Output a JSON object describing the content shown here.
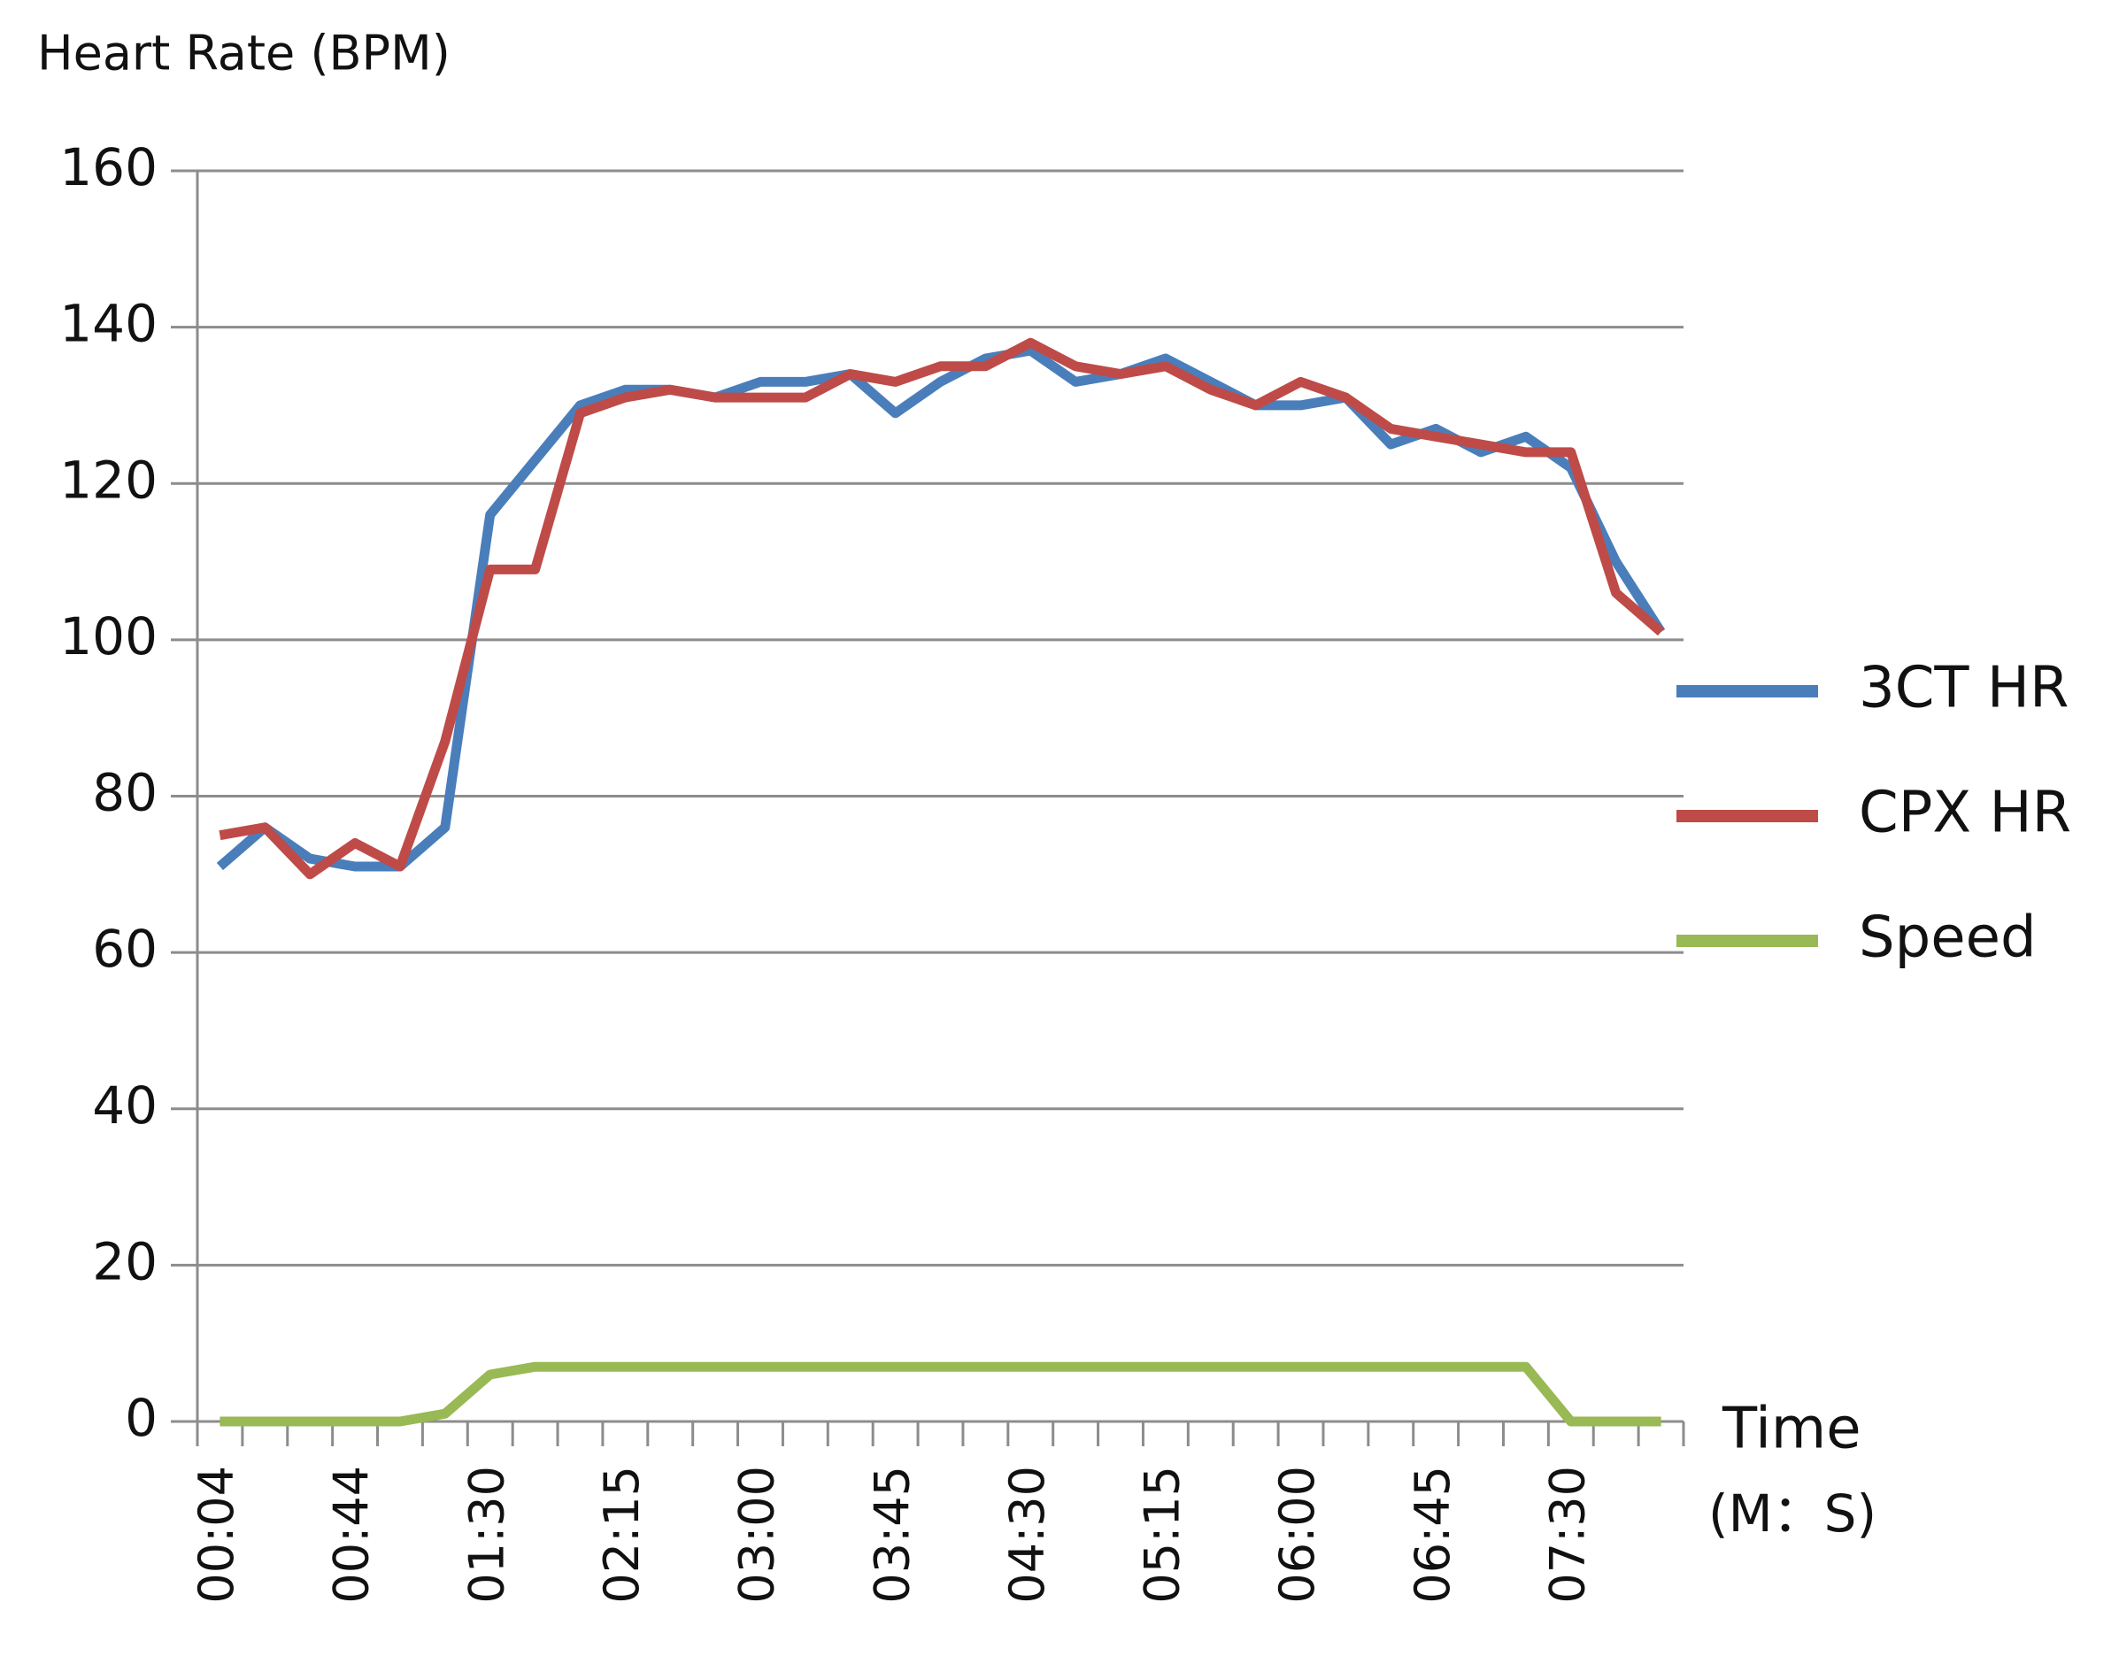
{
  "chart_data": {
    "type": "line",
    "y_label": "Heart Rate (BPM)",
    "x_label": "Time",
    "x_label_unit": "(M：S)",
    "categories": [
      "00:04",
      null,
      null,
      "00:44",
      null,
      null,
      "01:30",
      null,
      null,
      "02:15",
      null,
      null,
      "03:00",
      null,
      null,
      "03:45",
      null,
      null,
      "04:30",
      null,
      null,
      "05:15",
      null,
      null,
      "06:00",
      null,
      null,
      "06:45",
      null,
      null,
      "07:30",
      null,
      null
    ],
    "series": [
      {
        "name": "3CT HR",
        "color": "#4a7ebb",
        "values": [
          71,
          76,
          72,
          71,
          71,
          76,
          116,
          123,
          130,
          132,
          132,
          131,
          133,
          133,
          134,
          129,
          133,
          136,
          137,
          133,
          134,
          136,
          133,
          130,
          130,
          131,
          125,
          127,
          124,
          126,
          122,
          110,
          101
        ]
      },
      {
        "name": "CPX HR",
        "color": "#be4b48",
        "values": [
          75,
          76,
          70,
          74,
          71,
          87,
          109,
          109,
          129,
          131,
          132,
          131,
          131,
          131,
          134,
          133,
          135,
          135,
          138,
          135,
          134,
          135,
          132,
          130,
          133,
          131,
          127,
          126,
          125,
          124,
          124,
          106,
          101
        ]
      },
      {
        "name": "Speed",
        "color": "#98b954",
        "values": [
          0,
          0,
          0,
          0,
          0,
          1,
          6,
          7,
          7,
          7,
          7,
          7,
          7,
          7,
          7,
          7,
          7,
          7,
          7,
          7,
          7,
          7,
          7,
          7,
          7,
          7,
          7,
          7,
          7,
          7,
          0,
          0,
          0
        ]
      }
    ],
    "ylim": [
      0,
      160
    ],
    "yticks": [
      0,
      20,
      40,
      60,
      80,
      100,
      120,
      140,
      160
    ],
    "grid": true,
    "legend": "right"
  }
}
